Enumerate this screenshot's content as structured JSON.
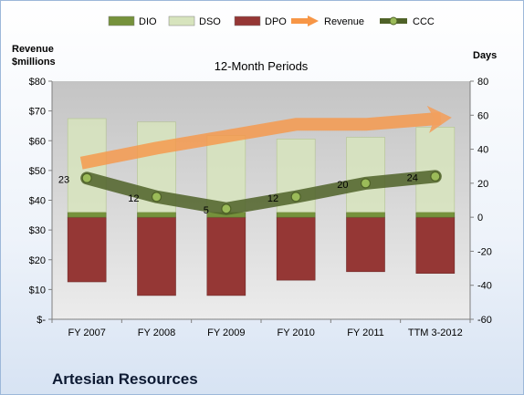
{
  "company": "Artesian Resources",
  "chart_data": {
    "type": "bar",
    "title": "12-Month Periods",
    "ylabel_left": [
      "Revenue",
      "$millions"
    ],
    "ylabel_right": "Days",
    "categories": [
      "FY 2007",
      "FY 2008",
      "FY 2009",
      "FY 2010",
      "FY 2011",
      "TTM 3-2012"
    ],
    "left_axis": {
      "min": 0,
      "max": 80,
      "step": 10,
      "tick_labels": [
        "$-",
        "$10",
        "$20",
        "$30",
        "$40",
        "$50",
        "$60",
        "$70",
        "$80"
      ]
    },
    "right_axis": {
      "min": -60,
      "max": 80,
      "step": 20,
      "tick_labels": [
        "-60",
        "-40",
        "-20",
        "0",
        "20",
        "40",
        "60",
        "80"
      ]
    },
    "series": [
      {
        "name": "DIO",
        "kind": "stacked-bar-positive",
        "axis": "right",
        "color": "#76923c",
        "values": [
          3,
          3,
          3,
          3,
          3,
          3
        ]
      },
      {
        "name": "DSO",
        "kind": "stacked-bar-positive",
        "axis": "right",
        "color": "#d7e4bd",
        "values": [
          55,
          53,
          45,
          43,
          44,
          50
        ]
      },
      {
        "name": "DPO",
        "kind": "stacked-bar-negative",
        "axis": "right",
        "color": "#953735",
        "values": [
          -38,
          -46,
          -46,
          -37,
          -32,
          -33
        ]
      },
      {
        "name": "Revenue",
        "kind": "arrow-line",
        "axis": "left",
        "color": "#f79646",
        "values": [
          52.5,
          57.5,
          61.5,
          65.5,
          65.5,
          67.5
        ]
      },
      {
        "name": "CCC",
        "kind": "line",
        "axis": "right",
        "color": "#4f6228",
        "values": [
          23,
          12,
          5,
          12,
          20,
          24
        ],
        "labels": [
          "23",
          "12",
          "5",
          "12",
          "20",
          "24"
        ]
      }
    ],
    "legend": {
      "position": "top",
      "entries": [
        "DIO",
        "DSO",
        "DPO",
        "Revenue",
        "CCC"
      ]
    },
    "grid": false,
    "plot_background": "#d9d9d9"
  }
}
